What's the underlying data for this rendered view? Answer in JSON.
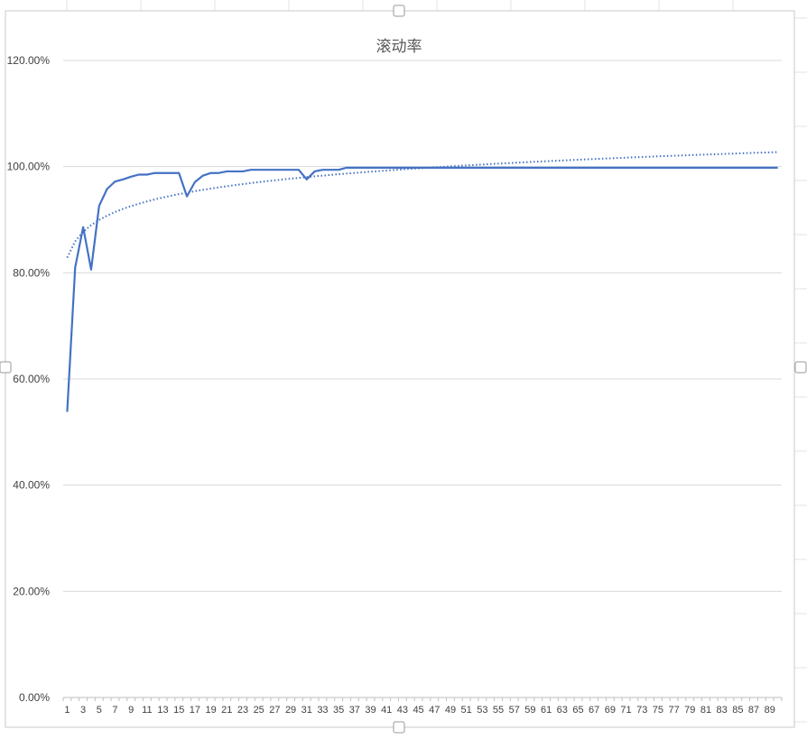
{
  "chart_data": {
    "type": "line",
    "title": "滚动率",
    "xlabel": "",
    "ylabel": "",
    "x": [
      1,
      2,
      3,
      4,
      5,
      6,
      7,
      8,
      9,
      10,
      11,
      12,
      13,
      14,
      15,
      16,
      17,
      18,
      19,
      20,
      21,
      22,
      23,
      24,
      25,
      26,
      27,
      28,
      29,
      30,
      31,
      32,
      33,
      34,
      35,
      36,
      37,
      38,
      39,
      40,
      41,
      42,
      43,
      44,
      45,
      46,
      47,
      48,
      49,
      50,
      51,
      52,
      53,
      54,
      55,
      56,
      57,
      58,
      59,
      60,
      61,
      62,
      63,
      64,
      65,
      66,
      67,
      68,
      69,
      70,
      71,
      72,
      73,
      74,
      75,
      76,
      77,
      78,
      79,
      80,
      81,
      82,
      83,
      84,
      85,
      86,
      87,
      88,
      89,
      90
    ],
    "x_tick_labels": [
      "1",
      "3",
      "5",
      "7",
      "9",
      "11",
      "13",
      "15",
      "17",
      "19",
      "21",
      "23",
      "25",
      "27",
      "29",
      "31",
      "33",
      "35",
      "37",
      "39",
      "41",
      "43",
      "45",
      "47",
      "49",
      "51",
      "53",
      "55",
      "57",
      "59",
      "61",
      "63",
      "65",
      "67",
      "69",
      "71",
      "73",
      "75",
      "77",
      "79",
      "81",
      "83",
      "85",
      "87",
      "89"
    ],
    "ylim": [
      0,
      1.2
    ],
    "y_ticks": [
      0,
      0.2,
      0.4,
      0.6,
      0.8,
      1.0,
      1.2
    ],
    "y_tick_labels": [
      "0.00%",
      "20.00%",
      "40.00%",
      "60.00%",
      "80.00%",
      "100.00%",
      "120.00%"
    ],
    "grid": true,
    "legend": "none",
    "series": [
      {
        "style": "solid",
        "color": "#4472C4",
        "values": [
          0.538,
          0.81,
          0.886,
          0.806,
          0.926,
          0.958,
          0.972,
          0.976,
          0.981,
          0.985,
          0.985,
          0.988,
          0.988,
          0.988,
          0.988,
          0.944,
          0.971,
          0.983,
          0.988,
          0.988,
          0.991,
          0.991,
          0.991,
          0.994,
          0.994,
          0.994,
          0.994,
          0.994,
          0.994,
          0.994,
          0.976,
          0.991,
          0.994,
          0.994,
          0.994,
          0.998,
          0.998,
          0.998,
          0.998,
          0.998,
          0.998,
          0.998,
          0.998,
          0.998,
          0.998,
          0.998,
          0.998,
          0.998,
          0.998,
          0.998,
          0.998,
          0.998,
          0.998,
          0.998,
          0.998,
          0.998,
          0.998,
          0.998,
          0.998,
          0.998,
          0.998,
          0.998,
          0.998,
          0.998,
          0.998,
          0.998,
          0.998,
          0.998,
          0.998,
          0.998,
          0.998,
          0.998,
          0.998,
          0.998,
          0.998,
          0.998,
          0.998,
          0.998,
          0.998,
          0.998,
          0.998,
          0.998,
          0.998,
          0.998,
          0.998,
          0.998,
          0.998,
          0.998,
          0.998,
          0.998
        ]
      },
      {
        "style": "dotted",
        "color": "#4472C4",
        "trendline": "logarithmic",
        "trend_a": 0.8285,
        "trend_b": 0.0442
      }
    ]
  }
}
